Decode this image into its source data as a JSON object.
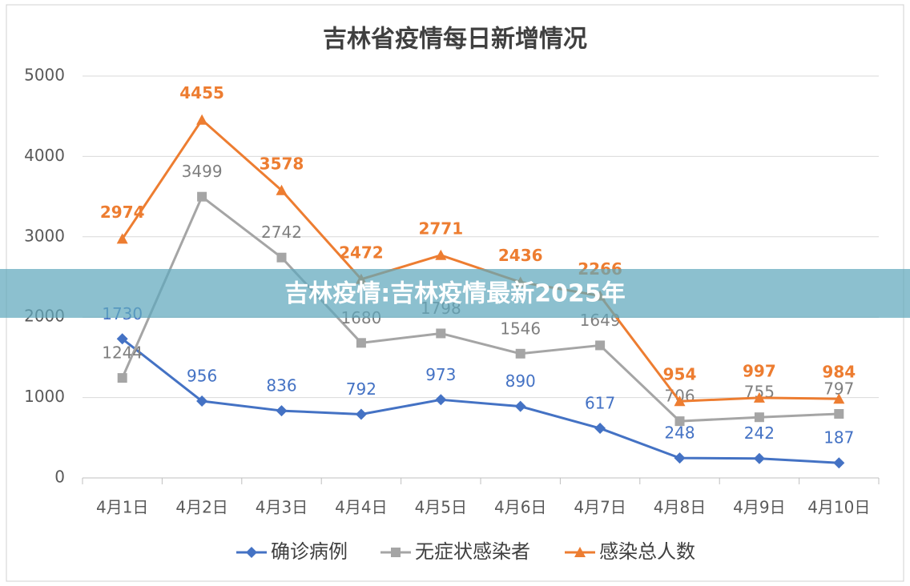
{
  "chart_data": {
    "type": "line",
    "title": "吉林省疫情每日新增情况",
    "categories": [
      "4月1日",
      "4月2日",
      "4月3日",
      "4月4日",
      "4月5日",
      "4月6日",
      "4月7日",
      "4月8日",
      "4月9日",
      "4月10日"
    ],
    "series": [
      {
        "name": "确诊病例",
        "color": "#4472c4",
        "marker": "diamond",
        "values": [
          1730,
          956,
          836,
          792,
          973,
          890,
          617,
          248,
          242,
          187
        ]
      },
      {
        "name": "无症状感染者",
        "color": "#a5a5a5",
        "marker": "square",
        "values": [
          1244,
          3499,
          2742,
          1680,
          1798,
          1546,
          1649,
          706,
          755,
          797
        ]
      },
      {
        "name": "感染总人数",
        "color": "#ed7d31",
        "marker": "triangle",
        "values": [
          2974,
          4455,
          3578,
          2472,
          2771,
          2436,
          2266,
          954,
          997,
          984
        ]
      }
    ],
    "ylim": [
      0,
      5000
    ],
    "yticks": [
      0,
      1000,
      2000,
      3000,
      4000,
      5000
    ],
    "grid": true,
    "legend": "bottom"
  },
  "banner": "吉林疫情:吉林疫情最新2025年"
}
